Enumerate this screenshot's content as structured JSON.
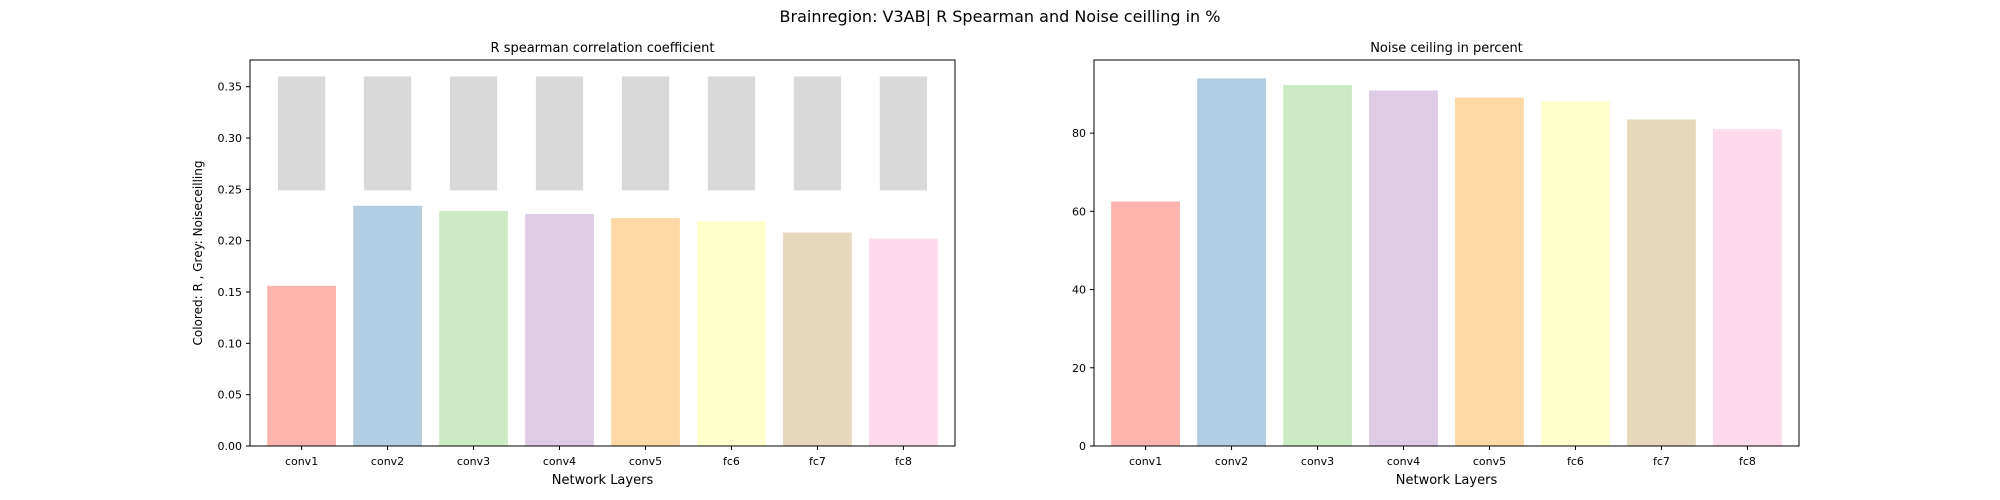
{
  "suptitle": "Brainregion: V3AB| R Spearman and Noise ceilling in %",
  "colors": [
    "#fbb4ae",
    "#b3cde3",
    "#ccebc5",
    "#decbe4",
    "#fed9a6",
    "#ffffcc",
    "#e5d8bd",
    "#fddaec"
  ],
  "noise_color": "#d9d9d9",
  "chart_data": [
    {
      "type": "bar",
      "title": "R spearman correlation coefficient",
      "xlabel": "Network Layers",
      "ylabel": "Colored: R , Grey: Noiseceilling",
      "categories": [
        "conv1",
        "conv2",
        "conv3",
        "conv4",
        "conv5",
        "fc6",
        "fc7",
        "fc8"
      ],
      "values": [
        0.156,
        0.234,
        0.229,
        0.226,
        0.222,
        0.219,
        0.208,
        0.202
      ],
      "noise_ceiling": {
        "lower": 0.249,
        "upper": 0.36
      },
      "ylim": [
        0,
        0.376
      ],
      "yticks": [
        0.0,
        0.05,
        0.1,
        0.15,
        0.2,
        0.25,
        0.3,
        0.35
      ],
      "ytick_labels": [
        "0.00",
        "0.05",
        "0.10",
        "0.15",
        "0.20",
        "0.25",
        "0.30",
        "0.35"
      ],
      "grid": false
    },
    {
      "type": "bar",
      "title": "Noise ceiling in percent",
      "xlabel": "Network Layers",
      "ylabel": "",
      "categories": [
        "conv1",
        "conv2",
        "conv3",
        "conv4",
        "conv5",
        "fc6",
        "fc7",
        "fc8"
      ],
      "values": [
        62.5,
        94.0,
        92.3,
        90.9,
        89.1,
        88.2,
        83.5,
        81.0
      ],
      "ylim": [
        0,
        98.7
      ],
      "yticks": [
        0,
        20,
        40,
        60,
        80
      ],
      "ytick_labels": [
        "0",
        "20",
        "40",
        "60",
        "80"
      ],
      "grid": false
    }
  ]
}
